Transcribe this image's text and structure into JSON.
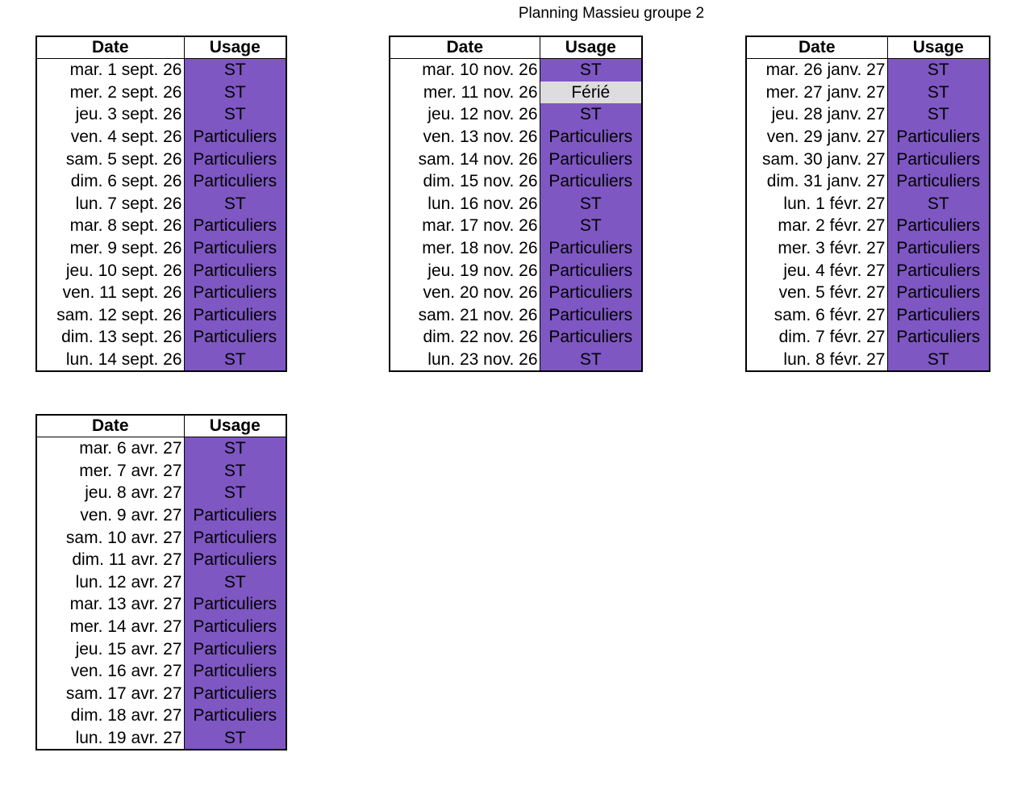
{
  "title": "Planning Massieu groupe 2",
  "colors": {
    "usage_fill": "#7e57c2",
    "ferie_fill": "#dddddd",
    "border": "#000000"
  },
  "tables": [
    {
      "headers": {
        "date": "Date",
        "usage": "Usage"
      },
      "rows": [
        {
          "date": "mar. 1 sept. 26",
          "usage": "ST"
        },
        {
          "date": "mer. 2 sept. 26",
          "usage": "ST"
        },
        {
          "date": "jeu. 3 sept. 26",
          "usage": "ST"
        },
        {
          "date": "ven. 4 sept. 26",
          "usage": "Particuliers"
        },
        {
          "date": "sam. 5 sept. 26",
          "usage": "Particuliers"
        },
        {
          "date": "dim. 6 sept. 26",
          "usage": "Particuliers"
        },
        {
          "date": "lun. 7 sept. 26",
          "usage": "ST"
        },
        {
          "date": "mar. 8 sept. 26",
          "usage": "Particuliers"
        },
        {
          "date": "mer. 9 sept. 26",
          "usage": "Particuliers"
        },
        {
          "date": "jeu. 10 sept. 26",
          "usage": "Particuliers"
        },
        {
          "date": "ven. 11 sept. 26",
          "usage": "Particuliers"
        },
        {
          "date": "sam. 12 sept. 26",
          "usage": "Particuliers"
        },
        {
          "date": "dim. 13 sept. 26",
          "usage": "Particuliers"
        },
        {
          "date": "lun. 14 sept. 26",
          "usage": "ST"
        }
      ]
    },
    {
      "headers": {
        "date": "Date",
        "usage": "Usage"
      },
      "rows": [
        {
          "date": "mar. 10 nov. 26",
          "usage": "ST"
        },
        {
          "date": "mer. 11 nov. 26",
          "usage": "Férié"
        },
        {
          "date": "jeu. 12 nov. 26",
          "usage": "ST"
        },
        {
          "date": "ven. 13 nov. 26",
          "usage": "Particuliers"
        },
        {
          "date": "sam. 14 nov. 26",
          "usage": "Particuliers"
        },
        {
          "date": "dim. 15 nov. 26",
          "usage": "Particuliers"
        },
        {
          "date": "lun. 16 nov. 26",
          "usage": "ST"
        },
        {
          "date": "mar. 17 nov. 26",
          "usage": "ST"
        },
        {
          "date": "mer. 18 nov. 26",
          "usage": "Particuliers"
        },
        {
          "date": "jeu. 19 nov. 26",
          "usage": "Particuliers"
        },
        {
          "date": "ven. 20 nov. 26",
          "usage": "Particuliers"
        },
        {
          "date": "sam. 21 nov. 26",
          "usage": "Particuliers"
        },
        {
          "date": "dim. 22 nov. 26",
          "usage": "Particuliers"
        },
        {
          "date": "lun. 23 nov. 26",
          "usage": "ST"
        }
      ]
    },
    {
      "headers": {
        "date": "Date",
        "usage": "Usage"
      },
      "rows": [
        {
          "date": "mar. 26 janv. 27",
          "usage": "ST"
        },
        {
          "date": "mer. 27 janv. 27",
          "usage": "ST"
        },
        {
          "date": "jeu. 28 janv. 27",
          "usage": "ST"
        },
        {
          "date": "ven. 29 janv. 27",
          "usage": "Particuliers"
        },
        {
          "date": "sam. 30 janv. 27",
          "usage": "Particuliers"
        },
        {
          "date": "dim. 31 janv. 27",
          "usage": "Particuliers"
        },
        {
          "date": "lun. 1 févr. 27",
          "usage": "ST"
        },
        {
          "date": "mar. 2 févr. 27",
          "usage": "Particuliers"
        },
        {
          "date": "mer. 3 févr. 27",
          "usage": "Particuliers"
        },
        {
          "date": "jeu. 4 févr. 27",
          "usage": "Particuliers"
        },
        {
          "date": "ven. 5 févr. 27",
          "usage": "Particuliers"
        },
        {
          "date": "sam. 6 févr. 27",
          "usage": "Particuliers"
        },
        {
          "date": "dim. 7 févr. 27",
          "usage": "Particuliers"
        },
        {
          "date": "lun. 8 févr. 27",
          "usage": "ST"
        }
      ]
    },
    {
      "headers": {
        "date": "Date",
        "usage": "Usage"
      },
      "rows": [
        {
          "date": "mar. 6 avr. 27",
          "usage": "ST"
        },
        {
          "date": "mer. 7 avr. 27",
          "usage": "ST"
        },
        {
          "date": "jeu. 8 avr. 27",
          "usage": "ST"
        },
        {
          "date": "ven. 9 avr. 27",
          "usage": "Particuliers"
        },
        {
          "date": "sam. 10 avr. 27",
          "usage": "Particuliers"
        },
        {
          "date": "dim. 11 avr. 27",
          "usage": "Particuliers"
        },
        {
          "date": "lun. 12 avr. 27",
          "usage": "ST"
        },
        {
          "date": "mar. 13 avr. 27",
          "usage": "Particuliers"
        },
        {
          "date": "mer. 14 avr. 27",
          "usage": "Particuliers"
        },
        {
          "date": "jeu. 15 avr. 27",
          "usage": "Particuliers"
        },
        {
          "date": "ven. 16 avr. 27",
          "usage": "Particuliers"
        },
        {
          "date": "sam. 17 avr. 27",
          "usage": "Particuliers"
        },
        {
          "date": "dim. 18 avr. 27",
          "usage": "Particuliers"
        },
        {
          "date": "lun. 19 avr. 27",
          "usage": "ST"
        }
      ]
    }
  ]
}
